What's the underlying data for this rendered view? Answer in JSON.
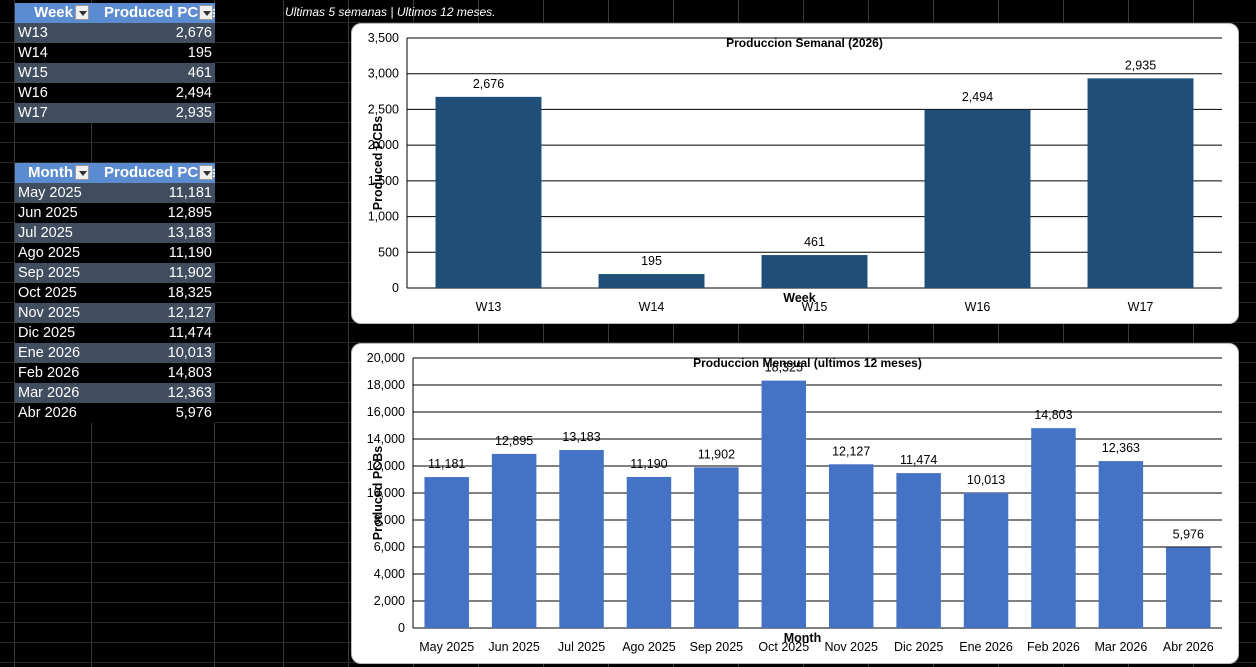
{
  "weekly_table": {
    "headers": [
      "Week",
      "Produced PCBs"
    ],
    "rows": [
      {
        "week": "W13",
        "value": "2,676"
      },
      {
        "week": "W14",
        "value": "195"
      },
      {
        "week": "W15",
        "value": "461"
      },
      {
        "week": "W16",
        "value": "2,494"
      },
      {
        "week": "W17",
        "value": "2,935"
      }
    ]
  },
  "monthly_table": {
    "headers": [
      "Month",
      "Produced PCBs"
    ],
    "rows": [
      {
        "month": "May 2025",
        "value": "11,181"
      },
      {
        "month": "Jun 2025",
        "value": "12,895"
      },
      {
        "month": "Jul 2025",
        "value": "13,183"
      },
      {
        "month": "Ago 2025",
        "value": "11,190"
      },
      {
        "month": "Sep 2025",
        "value": "11,902"
      },
      {
        "month": "Oct 2025",
        "value": "18,325"
      },
      {
        "month": "Nov 2025",
        "value": "12,127"
      },
      {
        "month": "Dic 2025",
        "value": "11,474"
      },
      {
        "month": "Ene 2026",
        "value": "10,013"
      },
      {
        "month": "Feb 2026",
        "value": "14,803"
      },
      {
        "month": "Mar 2026",
        "value": "12,363"
      },
      {
        "month": "Abr 2026",
        "value": "5,976"
      }
    ]
  },
  "caption": "Ultimas 5 semanas | Ultimos 12 meses.",
  "colors": {
    "weekly_bar": "#1f4e79",
    "monthly_bar": "#4472c4",
    "header_bg": "#5b8bd0",
    "band_row": "#3f4d5e"
  },
  "chart_data": [
    {
      "type": "bar",
      "title": "Produccion Semanal (2026)",
      "xlabel": "Week",
      "ylabel": "Produced PCBs",
      "categories": [
        "W13",
        "W14",
        "W15",
        "W16",
        "W17"
      ],
      "values": [
        2676,
        195,
        461,
        2494,
        2935
      ],
      "data_labels": [
        "2,676",
        "195",
        "461",
        "2,494",
        "2,935"
      ],
      "ylim": [
        0,
        3500
      ],
      "yticks": [
        0,
        500,
        1000,
        1500,
        2000,
        2500,
        3000,
        3500
      ],
      "ytick_labels": [
        "0",
        "500",
        "1,000",
        "1,500",
        "2,000",
        "2,500",
        "3,000",
        "3,500"
      ],
      "grid": true
    },
    {
      "type": "bar",
      "title": "Produccion Mensual (ultimos 12 meses)",
      "xlabel": "Month",
      "ylabel": "Produced PCBs",
      "categories": [
        "May 2025",
        "Jun 2025",
        "Jul 2025",
        "Ago 2025",
        "Sep 2025",
        "Oct 2025",
        "Nov 2025",
        "Dic 2025",
        "Ene 2026",
        "Feb 2026",
        "Mar 2026",
        "Abr 2026"
      ],
      "values": [
        11181,
        12895,
        13183,
        11190,
        11902,
        18325,
        12127,
        11474,
        10013,
        14803,
        12363,
        5976
      ],
      "data_labels": [
        "11,181",
        "12,895",
        "13,183",
        "11,190",
        "11,902",
        "18,325",
        "12,127",
        "11,474",
        "10,013",
        "14,803",
        "12,363",
        "5,976"
      ],
      "ylim": [
        0,
        20000
      ],
      "yticks": [
        0,
        2000,
        4000,
        6000,
        8000,
        10000,
        12000,
        14000,
        16000,
        18000,
        20000
      ],
      "ytick_labels": [
        "0",
        "2,000",
        "4,000",
        "6,000",
        "8,000",
        "10,000",
        "12,000",
        "14,000",
        "16,000",
        "18,000",
        "20,000"
      ],
      "grid": true
    }
  ]
}
